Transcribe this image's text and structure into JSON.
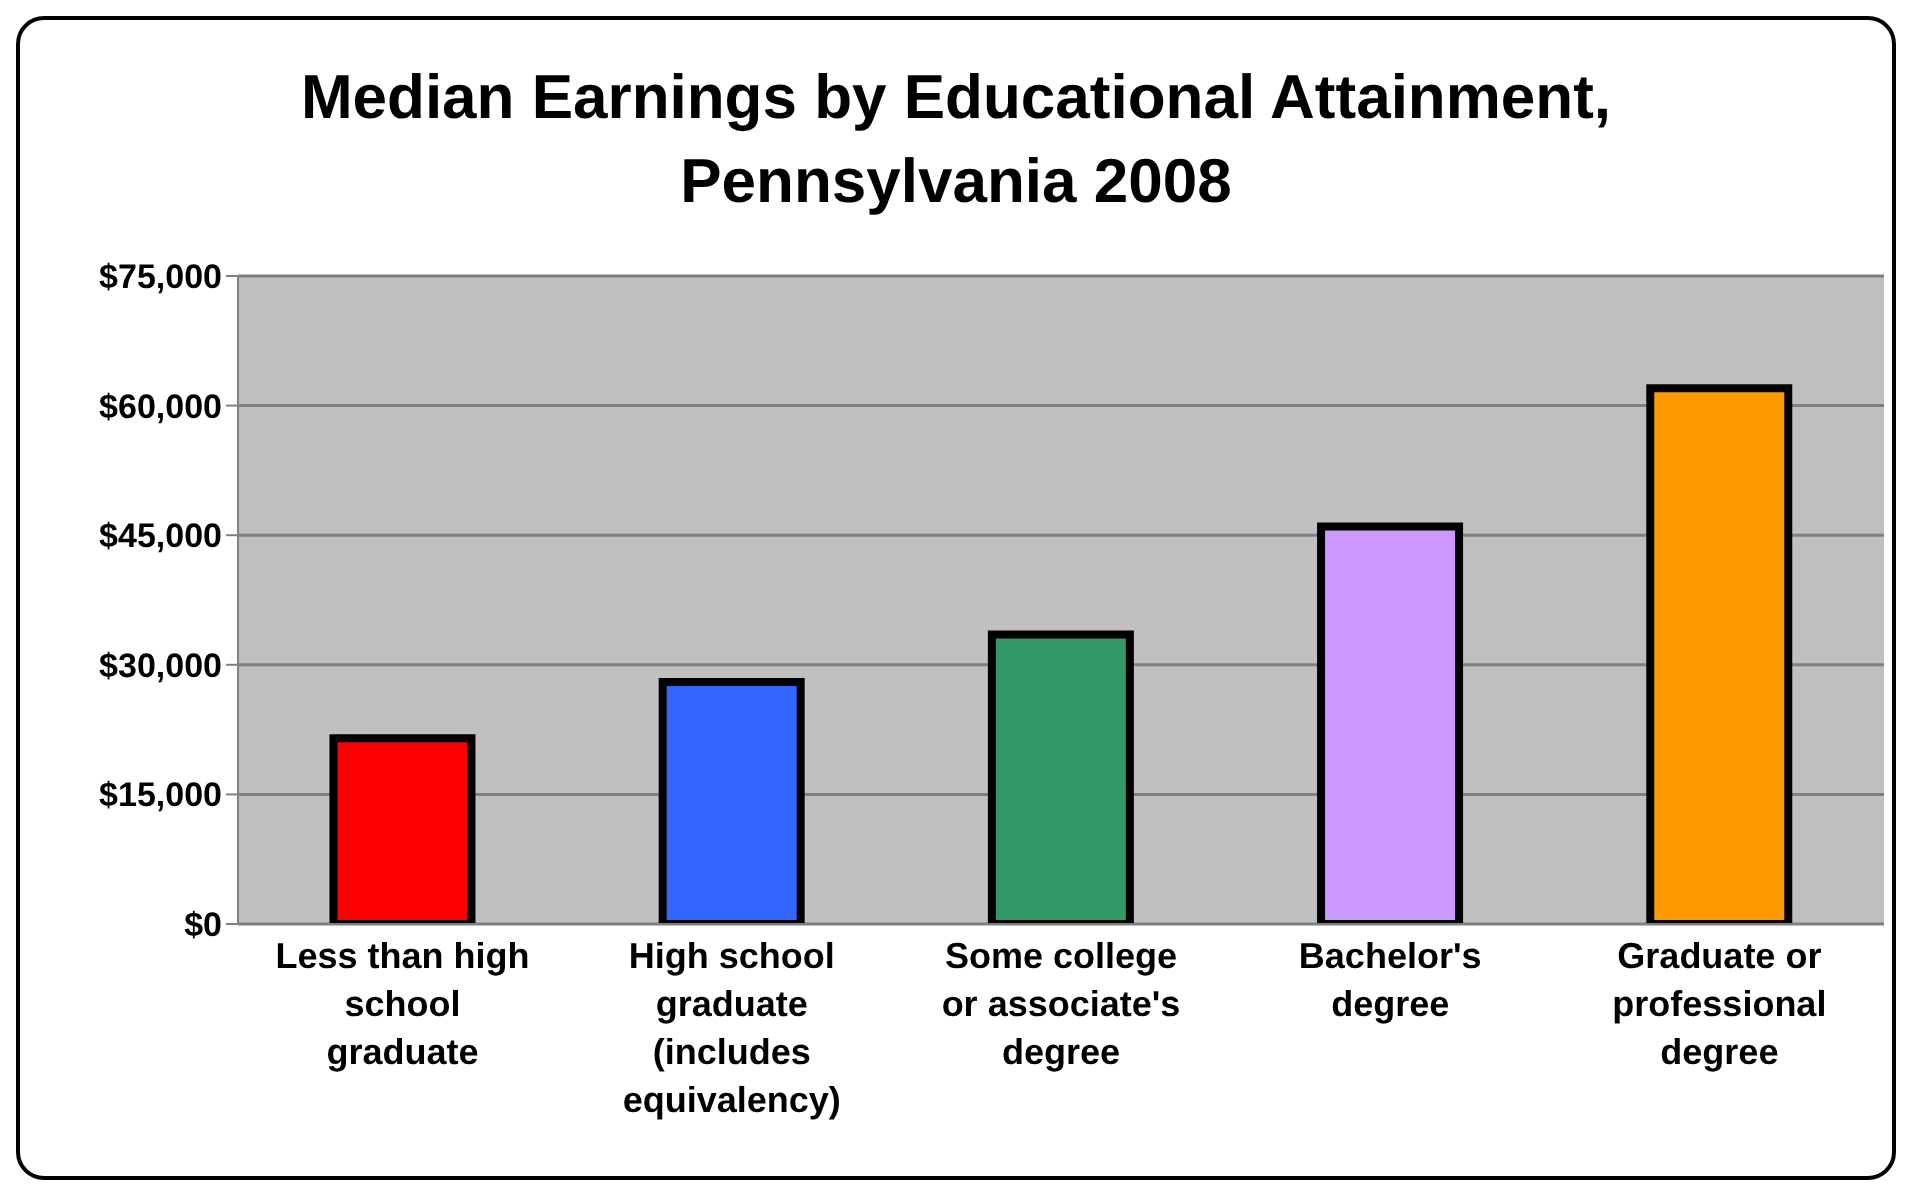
{
  "chart_data": {
    "type": "bar",
    "title": "Median Earnings by Educational Attainment, Pennsylvania 2008",
    "categories": [
      "Less than high school graduate",
      "High school graduate (includes equivalency)",
      "Some college or associate's degree",
      "Bachelor's degree",
      "Graduate or professional degree"
    ],
    "values": [
      21500,
      28000,
      33500,
      46000,
      62000
    ],
    "colors": [
      "#ff0000",
      "#3366ff",
      "#339966",
      "#cc99ff",
      "#ff9900"
    ],
    "ylim": [
      0,
      75000
    ],
    "yticks": [
      {
        "value": 0,
        "label": "$0"
      },
      {
        "value": 15000,
        "label": "$15,000"
      },
      {
        "value": 30000,
        "label": "$30,000"
      },
      {
        "value": 45000,
        "label": "$45,000"
      },
      {
        "value": 60000,
        "label": "$60,000"
      },
      {
        "value": 75000,
        "label": "$75,000"
      }
    ],
    "grid": "y",
    "legend": false
  }
}
